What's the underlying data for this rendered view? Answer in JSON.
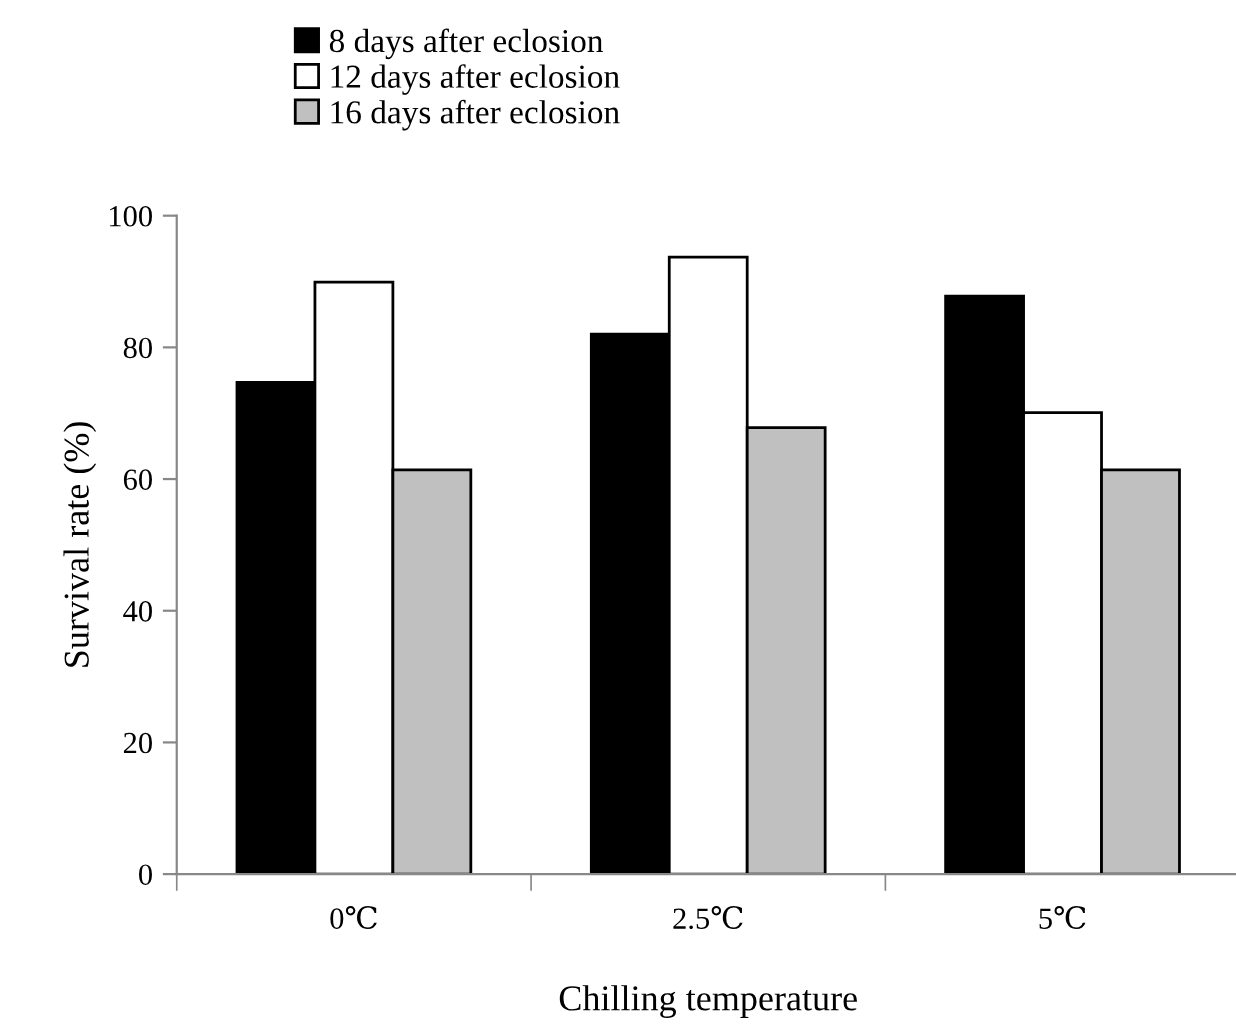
{
  "chart_data": {
    "type": "bar",
    "xlabel": "Chilling temperature",
    "ylabel": "Survival rate (%)",
    "categories": [
      "0℃",
      "2.5℃",
      "5℃"
    ],
    "series": [
      {
        "name": "8 days after eclosion",
        "color": "#000000",
        "values": [
          74.7,
          82,
          87.8
        ]
      },
      {
        "name": "12 days after eclosion",
        "color": "#ffffff",
        "values": [
          89.9,
          93.7,
          70.1
        ]
      },
      {
        "name": "16 days after eclosion",
        "color": "#c0c0c0",
        "values": [
          61.4,
          67.8,
          61.4
        ]
      }
    ],
    "ylim": [
      0,
      100
    ],
    "yticks": [
      0,
      20,
      40,
      60,
      80,
      100
    ],
    "grid": false,
    "legend": "top"
  }
}
